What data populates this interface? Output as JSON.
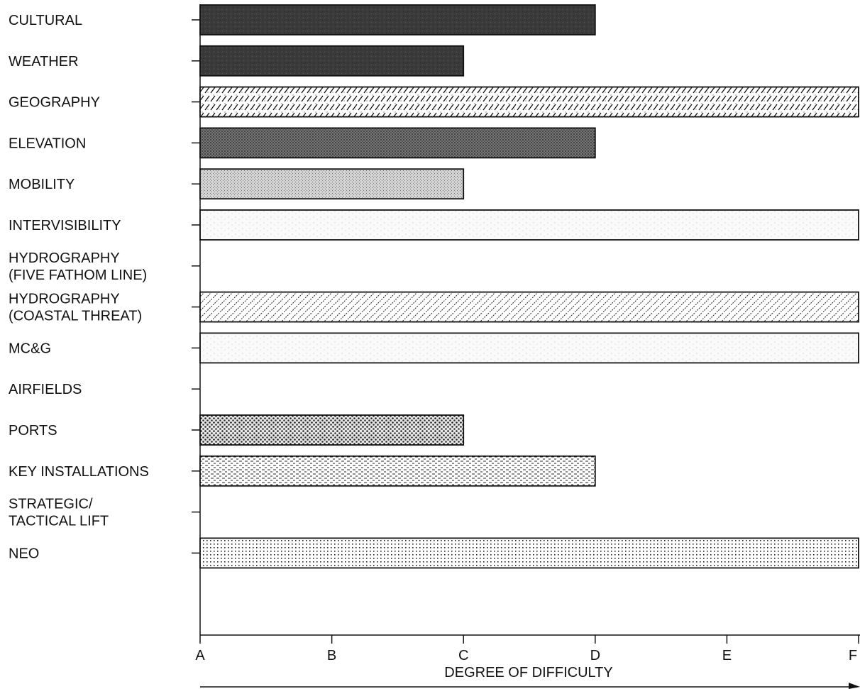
{
  "chart_data": {
    "type": "bar",
    "orientation": "horizontal",
    "title": "",
    "xlabel": "DEGREE OF DIFFICULTY",
    "ylabel": "",
    "x_ticks": [
      "A",
      "B",
      "C",
      "D",
      "E",
      "F"
    ],
    "xlim": [
      0,
      5
    ],
    "grid": false,
    "legend": "none",
    "categories": [
      "CULTURAL",
      "WEATHER",
      "GEOGRAPHY",
      "ELEVATION",
      "MOBILITY",
      "INTERVISIBILITY",
      "HYDROGRAPHY\n(FIVE FATHOM LINE)",
      "HYDROGRAPHY\n(COASTAL THREAT)",
      "MC&G",
      "AIRFIELDS",
      "PORTS",
      "KEY INSTALLATIONS",
      "STRATEGIC/\nTACTICAL LIFT",
      "NEO"
    ],
    "values": [
      3,
      2,
      5,
      3,
      2,
      5,
      0,
      5,
      5,
      0,
      2,
      3,
      0,
      5
    ],
    "patterns": [
      "solid-dark",
      "solid-dark",
      "diagonal-dash",
      "dense-dots",
      "light-dots",
      "speckle-light",
      "none",
      "diagonal-lines",
      "speckle-light",
      "none",
      "dots-coarse",
      "dashes-horizontal",
      "none",
      "grid-dots"
    ]
  }
}
